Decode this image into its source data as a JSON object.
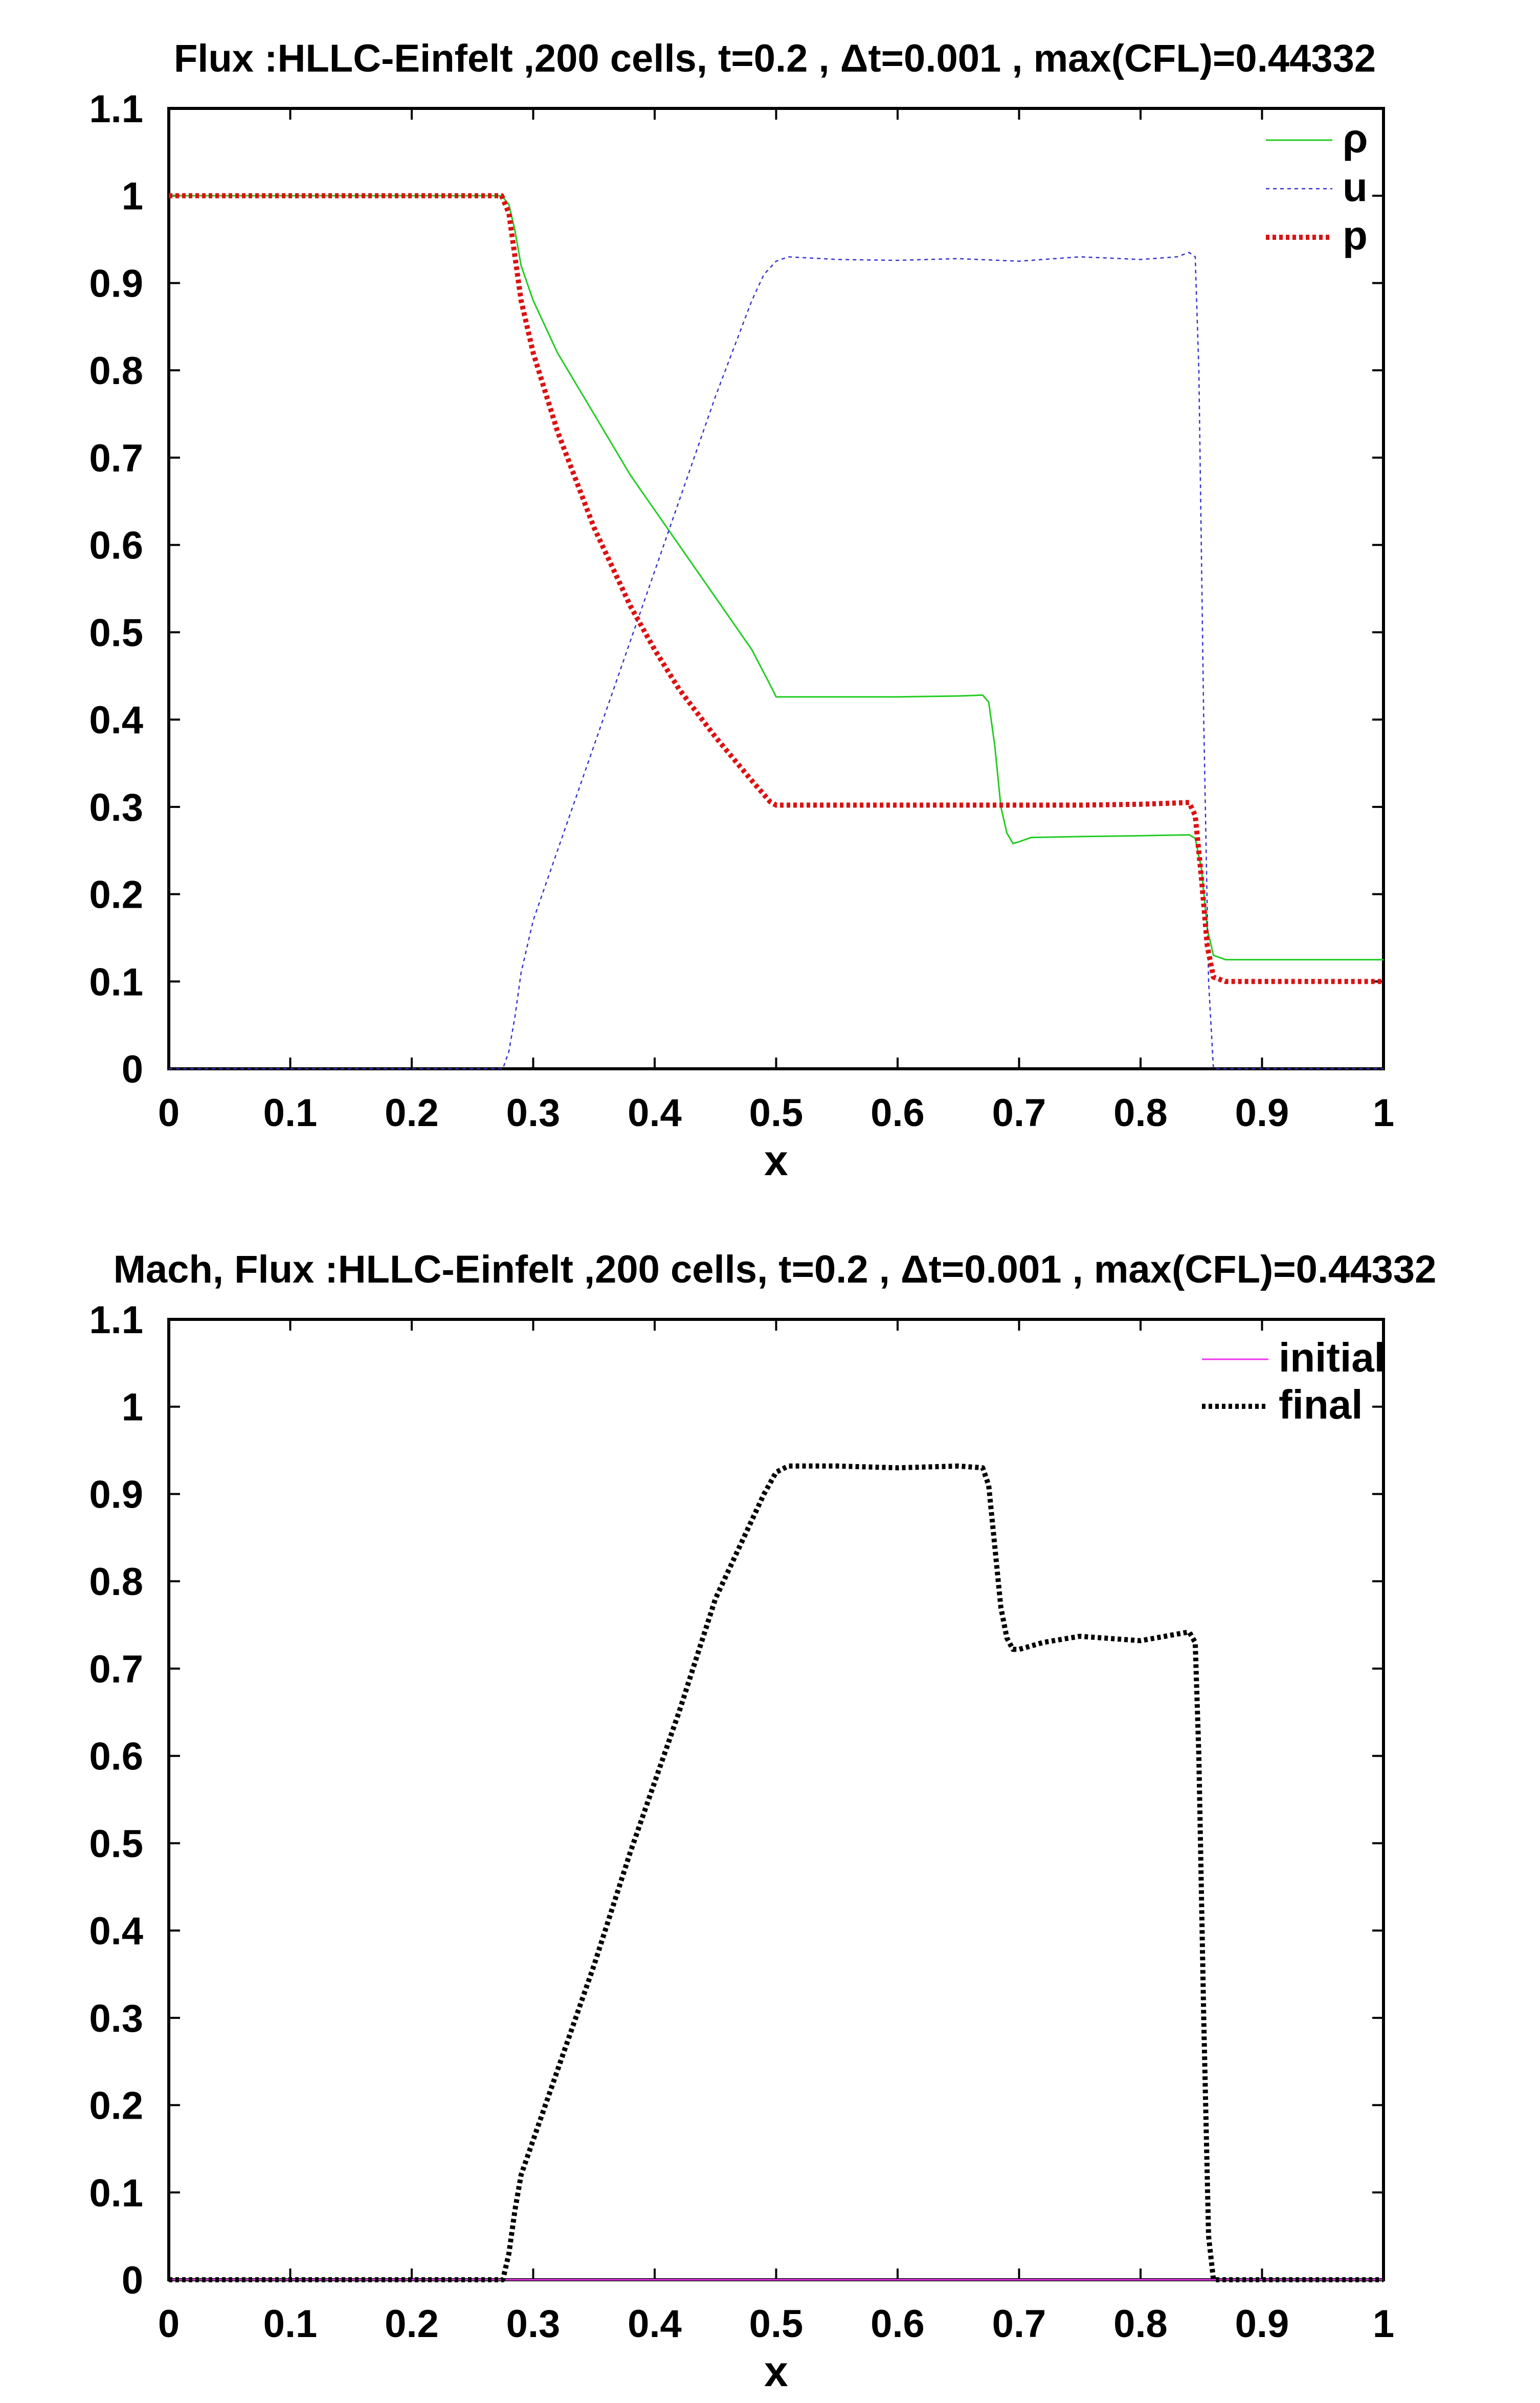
{
  "chart_data": [
    {
      "type": "line",
      "title": "Flux :HLLC-Einfelt  ,200 cells, t=0.2 , Δt=0.001 , max(CFL)=0.44332",
      "xlabel": "x",
      "ylabel": "",
      "xlim": [
        0,
        1
      ],
      "ylim": [
        0,
        1.1
      ],
      "xticks": [
        "0",
        "0.1",
        "0.2",
        "0.3",
        "0.4",
        "0.5",
        "0.6",
        "0.7",
        "0.8",
        "0.9",
        "1"
      ],
      "yticks": [
        "0",
        "0.1",
        "0.2",
        "0.3",
        "0.4",
        "0.5",
        "0.6",
        "0.7",
        "0.8",
        "0.9",
        "1",
        "1.1"
      ],
      "grid": false,
      "legend_position": "top-right",
      "series": [
        {
          "name": "ρ",
          "color": "#22cc22",
          "style": "solid",
          "x": [
            0,
            0.274,
            0.28,
            0.285,
            0.29,
            0.3,
            0.32,
            0.35,
            0.38,
            0.4,
            0.42,
            0.45,
            0.48,
            0.495,
            0.5,
            0.52,
            0.55,
            0.6,
            0.65,
            0.67,
            0.675,
            0.68,
            0.685,
            0.69,
            0.695,
            0.7,
            0.71,
            0.75,
            0.8,
            0.84,
            0.845,
            0.85,
            0.855,
            0.86,
            0.87,
            1.0
          ],
          "y": [
            1,
            1,
            0.99,
            0.96,
            0.92,
            0.88,
            0.82,
            0.75,
            0.68,
            0.64,
            0.6,
            0.54,
            0.48,
            0.44,
            0.426,
            0.426,
            0.426,
            0.426,
            0.427,
            0.428,
            0.42,
            0.37,
            0.3,
            0.27,
            0.258,
            0.26,
            0.265,
            0.266,
            0.267,
            0.268,
            0.264,
            0.23,
            0.16,
            0.13,
            0.125,
            0.125
          ]
        },
        {
          "name": "u",
          "color": "#3333cc",
          "style": "dashed",
          "x": [
            0,
            0.275,
            0.28,
            0.285,
            0.29,
            0.3,
            0.32,
            0.35,
            0.38,
            0.4,
            0.42,
            0.45,
            0.48,
            0.49,
            0.5,
            0.51,
            0.55,
            0.6,
            0.65,
            0.7,
            0.75,
            0.8,
            0.83,
            0.84,
            0.845,
            0.848,
            0.852,
            0.856,
            0.86,
            1.0
          ],
          "y": [
            0,
            0,
            0.02,
            0.06,
            0.11,
            0.17,
            0.25,
            0.37,
            0.49,
            0.57,
            0.65,
            0.77,
            0.88,
            0.91,
            0.925,
            0.93,
            0.927,
            0.926,
            0.928,
            0.925,
            0.93,
            0.927,
            0.93,
            0.935,
            0.93,
            0.8,
            0.4,
            0.1,
            0.0,
            0.0
          ]
        },
        {
          "name": "p",
          "color": "#dd1111",
          "style": "dotted",
          "x": [
            0,
            0.274,
            0.28,
            0.285,
            0.29,
            0.3,
            0.32,
            0.35,
            0.38,
            0.4,
            0.42,
            0.45,
            0.48,
            0.495,
            0.5,
            0.55,
            0.6,
            0.65,
            0.7,
            0.75,
            0.8,
            0.84,
            0.845,
            0.85,
            0.855,
            0.86,
            0.87,
            1.0
          ],
          "y": [
            1,
            1,
            0.98,
            0.93,
            0.88,
            0.82,
            0.73,
            0.62,
            0.53,
            0.48,
            0.435,
            0.38,
            0.33,
            0.306,
            0.302,
            0.302,
            0.302,
            0.302,
            0.302,
            0.302,
            0.303,
            0.305,
            0.29,
            0.22,
            0.14,
            0.105,
            0.1,
            0.1
          ]
        }
      ]
    },
    {
      "type": "line",
      "title": "Mach, Flux :HLLC-Einfelt ,200 cells, t=0.2 , Δt=0.001 , max(CFL)=0.44332",
      "xlabel": "x",
      "ylabel": "",
      "xlim": [
        0,
        1
      ],
      "ylim": [
        0,
        1.1
      ],
      "xticks": [
        "0",
        "0.1",
        "0.2",
        "0.3",
        "0.4",
        "0.5",
        "0.6",
        "0.7",
        "0.8",
        "0.9",
        "1"
      ],
      "yticks": [
        "0",
        "0.1",
        "0.2",
        "0.3",
        "0.4",
        "0.5",
        "0.6",
        "0.7",
        "0.8",
        "0.9",
        "1",
        "1.1"
      ],
      "grid": false,
      "legend_position": "top-right",
      "series": [
        {
          "name": "initial",
          "color": "#ee33ee",
          "style": "solid",
          "x": [
            0,
            1.0
          ],
          "y": [
            0,
            0
          ]
        },
        {
          "name": "final",
          "color": "#000000",
          "style": "dotted",
          "x": [
            0,
            0.275,
            0.28,
            0.285,
            0.29,
            0.3,
            0.32,
            0.35,
            0.38,
            0.4,
            0.42,
            0.45,
            0.48,
            0.49,
            0.5,
            0.51,
            0.55,
            0.6,
            0.65,
            0.67,
            0.675,
            0.68,
            0.685,
            0.69,
            0.695,
            0.7,
            0.72,
            0.75,
            0.8,
            0.84,
            0.845,
            0.848,
            0.852,
            0.856,
            0.86,
            1.0
          ],
          "y": [
            0,
            0,
            0.03,
            0.08,
            0.12,
            0.16,
            0.24,
            0.36,
            0.49,
            0.57,
            0.65,
            0.78,
            0.87,
            0.9,
            0.925,
            0.932,
            0.932,
            0.93,
            0.932,
            0.93,
            0.91,
            0.84,
            0.77,
            0.735,
            0.722,
            0.722,
            0.73,
            0.737,
            0.732,
            0.742,
            0.73,
            0.6,
            0.3,
            0.05,
            0.0,
            0.0
          ]
        }
      ]
    }
  ]
}
